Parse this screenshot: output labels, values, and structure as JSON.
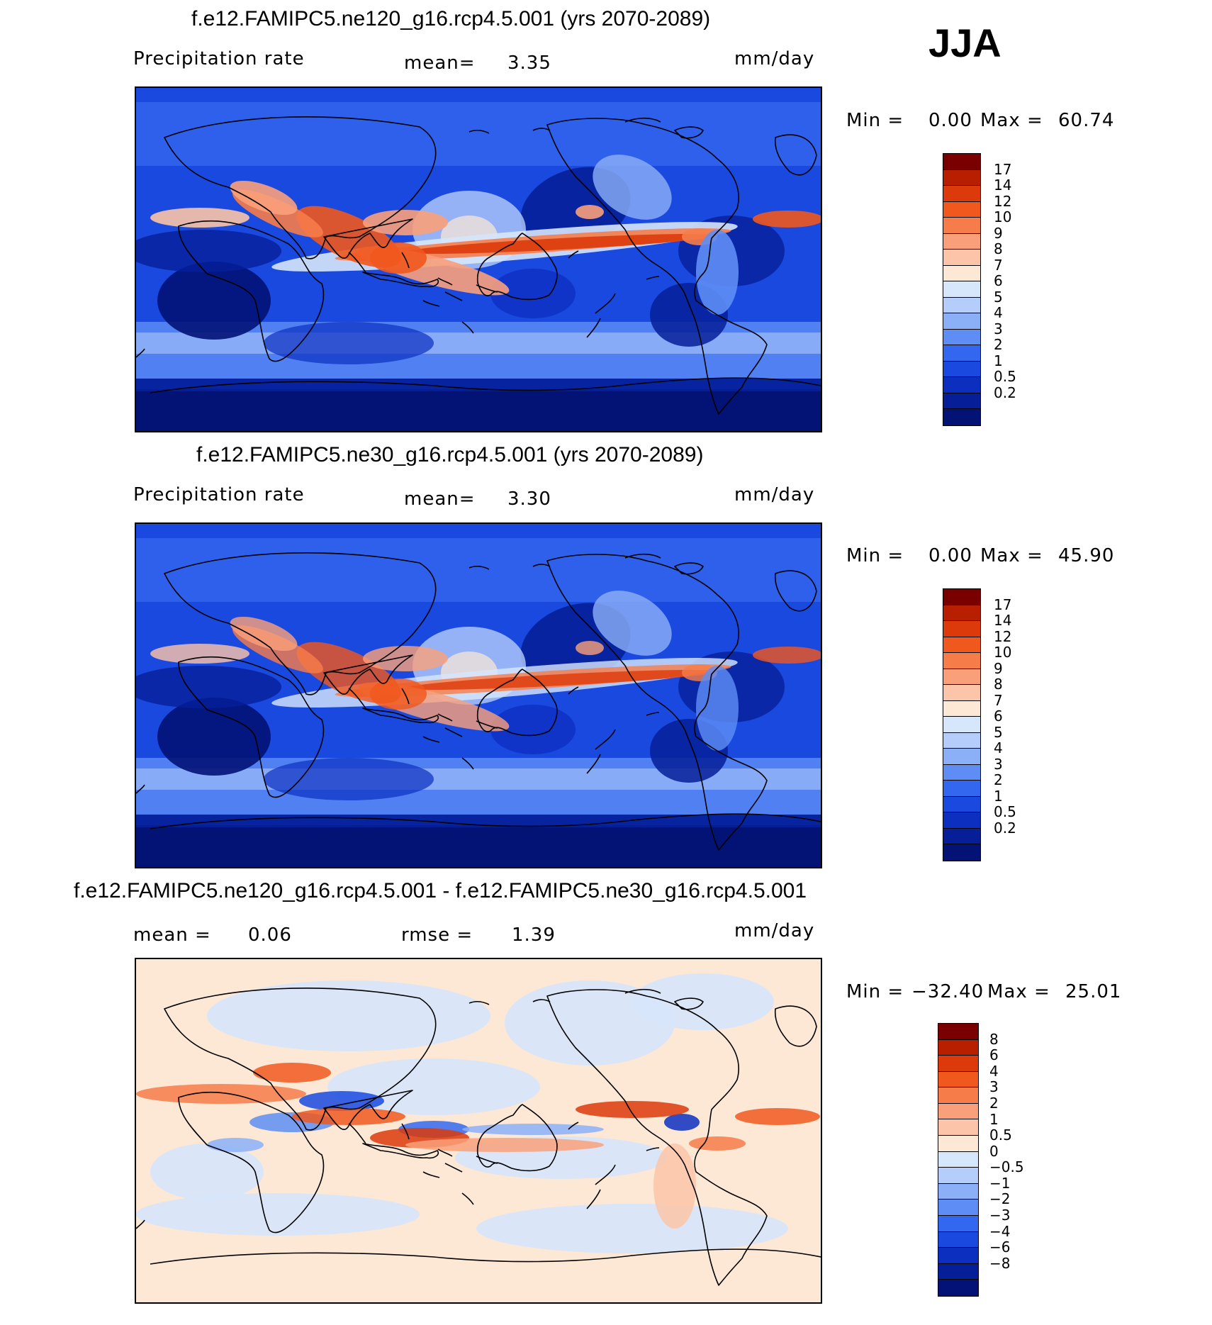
{
  "season": "JJA",
  "panels": [
    {
      "title": "f.e12.FAMIPC5.ne120_g16.rcp4.5.001 (yrs 2070-2089)",
      "variable": "Precipitation  rate",
      "mean_label": "mean=",
      "mean_value": "3.35",
      "units": "mm/day",
      "min_label": "Min  =",
      "min_value": "0.00",
      "max_label": "Max  =",
      "max_value": "60.74",
      "scale": "precip",
      "intensity": 1.0
    },
    {
      "title": "f.e12.FAMIPC5.ne30_g16.rcp4.5.001 (yrs 2070-2089)",
      "variable": "Precipitation  rate",
      "mean_label": "mean=",
      "mean_value": "3.30",
      "units": "mm/day",
      "min_label": "Min  =",
      "min_value": "0.00",
      "max_label": "Max  =",
      "max_value": "45.90",
      "scale": "precip",
      "intensity": 0.9
    },
    {
      "title": "f.e12.FAMIPC5.ne120_g16.rcp4.5.001 - f.e12.FAMIPC5.ne30_g16.rcp4.5.001",
      "mean_label": "mean  =",
      "mean_value": "0.06",
      "rmse_label": "rmse  =",
      "rmse_value": "1.39",
      "units": "mm/day",
      "min_label": "Min  =",
      "min_value": "−32.40",
      "max_label": "Max  =",
      "max_value": "25.01",
      "scale": "diff"
    }
  ],
  "colorbars": {
    "precip": {
      "labels": [
        "17",
        "14",
        "12",
        "10",
        "9",
        "8",
        "7",
        "6",
        "5",
        "4",
        "3",
        "2",
        "1",
        "0.5",
        "0.2"
      ],
      "colors": [
        "#7a0000",
        "#b81e00",
        "#dc3a0a",
        "#f0581e",
        "#f67c4a",
        "#f9a07a",
        "#fcc4a8",
        "#fde8d6",
        "#d6e6fb",
        "#b4cdfb",
        "#8cb0f8",
        "#5e8ef5",
        "#3467ef",
        "#1a49e0",
        "#0c2fc0",
        "#061f99",
        "#021275"
      ]
    },
    "diff": {
      "labels": [
        "8",
        "6",
        "4",
        "3",
        "2",
        "1",
        "0.5",
        "0",
        "−0.5",
        "−1",
        "−2",
        "−3",
        "−4",
        "−6",
        "−8"
      ],
      "colors": [
        "#7a0000",
        "#b81e00",
        "#dc3a0a",
        "#f0581e",
        "#f67c4a",
        "#f9a07a",
        "#fcc4a8",
        "#fde8d6",
        "#d6e6fb",
        "#b4cdfb",
        "#8cb0f8",
        "#5e8ef5",
        "#3467ef",
        "#1a49e0",
        "#0c2fc0",
        "#061f99",
        "#021275"
      ]
    }
  }
}
